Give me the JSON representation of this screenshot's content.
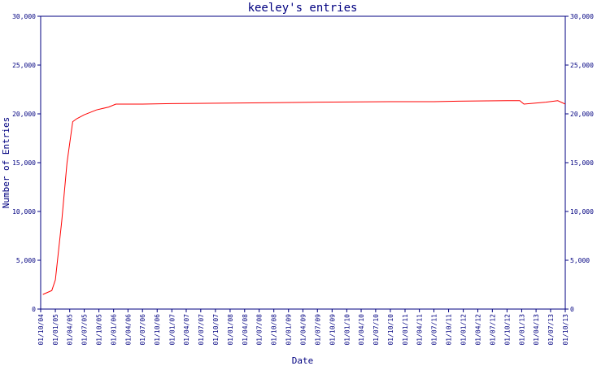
{
  "chart_data": {
    "type": "line",
    "title": "keeley's entries",
    "xlabel": "Date",
    "ylabel": "Number of Entries",
    "ylim": [
      0,
      30000
    ],
    "y_ticks": [
      0,
      5000,
      10000,
      15000,
      20000,
      25000,
      30000
    ],
    "y_tick_labels": [
      "0",
      "5,000",
      "10,000",
      "15,000",
      "20,000",
      "25,000",
      "30,000"
    ],
    "x_tick_labels": [
      "01/10/04",
      "01/01/05",
      "01/04/05",
      "01/07/05",
      "01/10/05",
      "01/01/06",
      "01/04/06",
      "01/07/06",
      "01/10/06",
      "01/01/07",
      "01/04/07",
      "01/07/07",
      "01/10/07",
      "01/01/08",
      "01/04/08",
      "01/07/08",
      "01/10/08",
      "01/01/09",
      "01/04/09",
      "01/07/09",
      "01/10/09",
      "01/01/10",
      "01/04/10",
      "01/07/10",
      "01/10/10",
      "01/01/11",
      "01/04/11",
      "01/07/11",
      "01/10/11",
      "01/01/12",
      "01/04/12",
      "01/07/12",
      "01/10/12",
      "01/01/13",
      "01/04/13",
      "01/07/13",
      "01/10/13"
    ],
    "right_axis": true,
    "grid": false,
    "line_color": "#ff0000",
    "frame_color": "#000080",
    "series": [
      {
        "x": [
          "2004-10-15",
          "2004-12-10",
          "2005-01-01",
          "2005-02-10",
          "2005-03-15",
          "2005-04-20",
          "2005-05-15",
          "2005-06-30",
          "2005-09-15",
          "2005-12-01",
          "2006-01-15",
          "2006-07-01",
          "2007-01-01",
          "2008-01-01",
          "2008-10-01",
          "2009-07-01",
          "2010-10-01",
          "2011-07-01",
          "2011-12-01",
          "2012-10-01",
          "2012-12-20",
          "2013-01-15",
          "2013-06-01",
          "2013-08-15",
          "2013-10-01"
        ],
        "values": [
          1500,
          1900,
          3000,
          9000,
          15000,
          19200,
          19500,
          19900,
          20400,
          20700,
          21000,
          21000,
          21050,
          21100,
          21150,
          21200,
          21250,
          21250,
          21300,
          21350,
          21350,
          21000,
          21200,
          21350,
          21000
        ]
      }
    ]
  }
}
